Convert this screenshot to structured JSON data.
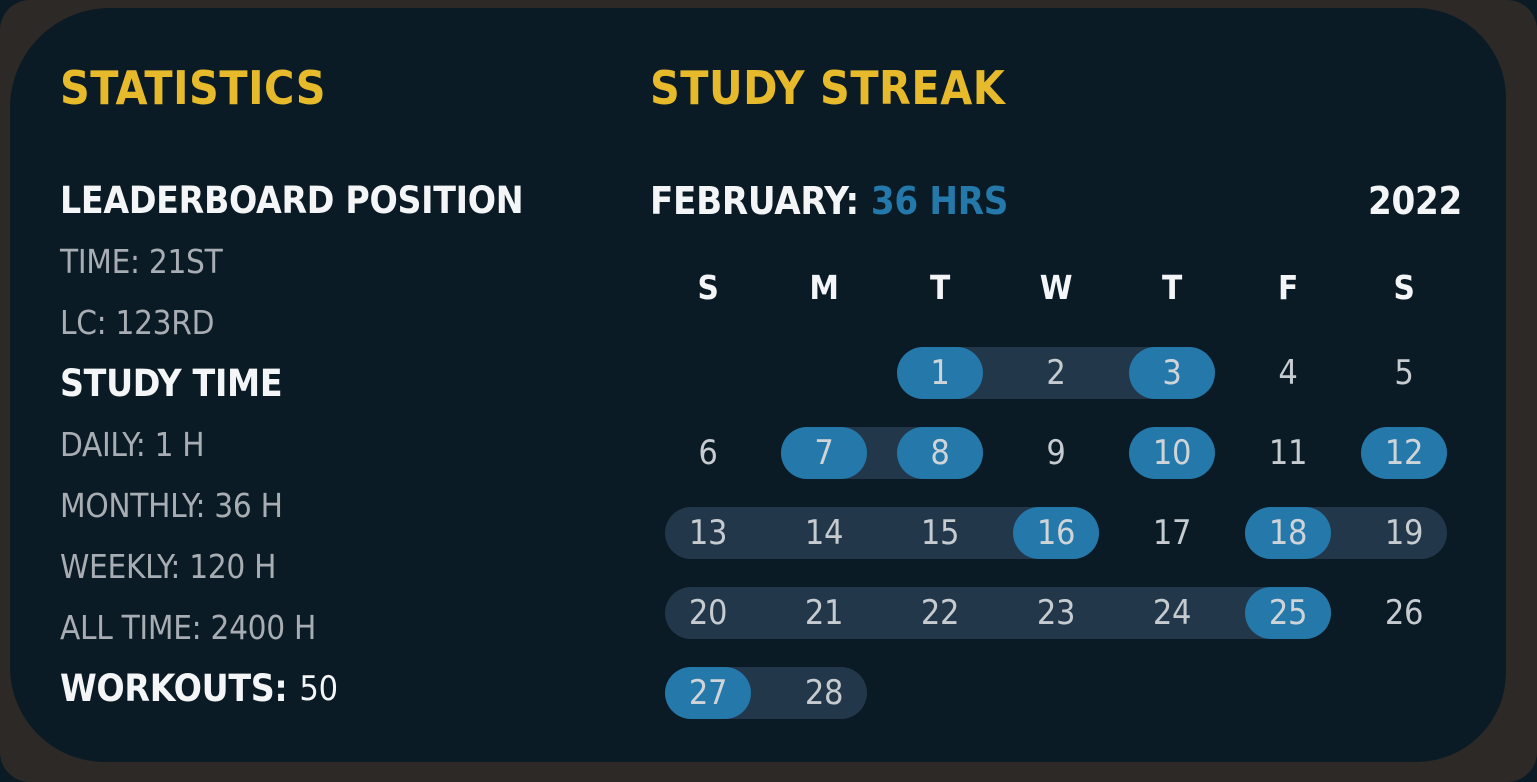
{
  "statistics": {
    "title": "STATISTICS",
    "leaderboard_heading": "LEADERBOARD POSITION",
    "time_rank": "TIME: 21ST",
    "lc_rank": "LC: 123RD",
    "study_time_heading": "STUDY TIME",
    "daily": "DAILY: 1 H",
    "monthly": "MONTHLY: 36 H",
    "weekly": "WEEKLY: 120 H",
    "all_time": "ALL TIME: 2400 H",
    "workouts_label": "WORKOUTS:",
    "workouts_value": "50"
  },
  "streak": {
    "title": "STUDY STREAK",
    "month_label": "FEBRUARY:",
    "month_hours": "36 HRS",
    "year": "2022",
    "day_headers": [
      "S",
      "M",
      "T",
      "W",
      "T",
      "F",
      "S"
    ],
    "weeks": [
      {
        "bands": [
          {
            "start": 2,
            "end": 4
          }
        ],
        "days": [
          {
            "col": 2,
            "num": "1",
            "active": true
          },
          {
            "col": 3,
            "num": "2",
            "active": false
          },
          {
            "col": 4,
            "num": "3",
            "active": true
          },
          {
            "col": 5,
            "num": "4",
            "active": false
          },
          {
            "col": 6,
            "num": "5",
            "active": false
          }
        ]
      },
      {
        "bands": [
          {
            "start": 1,
            "end": 2
          }
        ],
        "days": [
          {
            "col": 0,
            "num": "6",
            "active": false
          },
          {
            "col": 1,
            "num": "7",
            "active": true
          },
          {
            "col": 2,
            "num": "8",
            "active": true
          },
          {
            "col": 3,
            "num": "9",
            "active": false
          },
          {
            "col": 4,
            "num": "10",
            "active": true
          },
          {
            "col": 5,
            "num": "11",
            "active": false
          },
          {
            "col": 6,
            "num": "12",
            "active": true
          }
        ]
      },
      {
        "bands": [
          {
            "start": 0,
            "end": 3
          },
          {
            "start": 5,
            "end": 6
          }
        ],
        "days": [
          {
            "col": 0,
            "num": "13",
            "active": false
          },
          {
            "col": 1,
            "num": "14",
            "active": false
          },
          {
            "col": 2,
            "num": "15",
            "active": false
          },
          {
            "col": 3,
            "num": "16",
            "active": true
          },
          {
            "col": 4,
            "num": "17",
            "active": false
          },
          {
            "col": 5,
            "num": "18",
            "active": true
          },
          {
            "col": 6,
            "num": "19",
            "active": false
          }
        ]
      },
      {
        "bands": [
          {
            "start": 0,
            "end": 5
          }
        ],
        "days": [
          {
            "col": 0,
            "num": "20",
            "active": false
          },
          {
            "col": 1,
            "num": "21",
            "active": false
          },
          {
            "col": 2,
            "num": "22",
            "active": false
          },
          {
            "col": 3,
            "num": "23",
            "active": false
          },
          {
            "col": 4,
            "num": "24",
            "active": false
          },
          {
            "col": 5,
            "num": "25",
            "active": true
          },
          {
            "col": 6,
            "num": "26",
            "active": false
          }
        ]
      },
      {
        "bands": [
          {
            "start": 0,
            "end": 1
          }
        ],
        "days": [
          {
            "col": 0,
            "num": "27",
            "active": true
          },
          {
            "col": 1,
            "num": "28",
            "active": false
          }
        ]
      }
    ]
  },
  "colors": {
    "accent_yellow": "#e7ba2b",
    "accent_blue": "#2478aa",
    "band": "#22384a",
    "card_bg": "#0a1b25",
    "frame": "#2d2926",
    "text_white": "#f3f5f6",
    "text_gray": "#a8adb3",
    "day_number": "#c6cbd0"
  }
}
